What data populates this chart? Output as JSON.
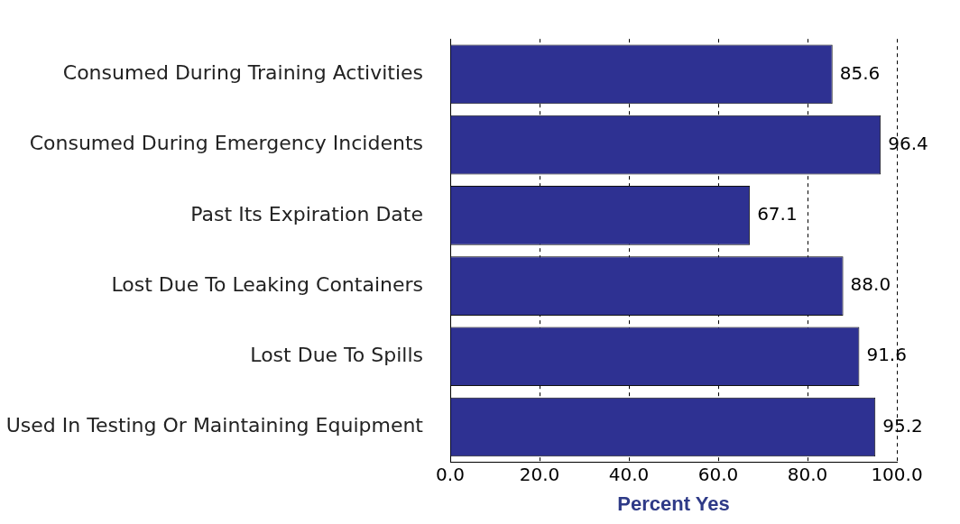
{
  "chart_data": {
    "type": "bar",
    "orientation": "horizontal",
    "xlabel": "Percent Yes",
    "categories": [
      "Consumed During Training Activities",
      "Consumed During Emergency Incidents",
      "Past Its Expiration Date",
      "Lost Due To Leaking Containers",
      "Lost Due To Spills",
      "Used In Testing Or Maintaining Equipment"
    ],
    "values": [
      85.6,
      96.4,
      67.1,
      88.0,
      91.6,
      95.2
    ],
    "value_labels": [
      "85.6",
      "96.4",
      "67.1",
      "88.0",
      "91.6",
      "95.2"
    ],
    "color": "#2e3192",
    "xlim": [
      0,
      100
    ],
    "xticks": [
      {
        "value": 0,
        "label": "0.0"
      },
      {
        "value": 20,
        "label": "20.0"
      },
      {
        "value": 40,
        "label": "40.0"
      },
      {
        "value": 60,
        "label": "60.0"
      },
      {
        "value": 80,
        "label": "80.0"
      },
      {
        "value": 100,
        "label": "100.0"
      }
    ],
    "grid": "x",
    "legend": false
  }
}
